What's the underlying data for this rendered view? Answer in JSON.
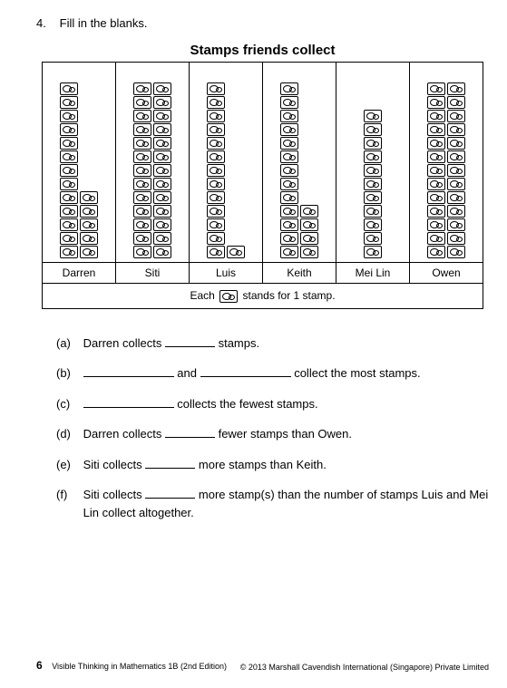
{
  "question_number": "4.",
  "instruction": "Fill in the blanks.",
  "chart": {
    "title": "Stamps friends collect",
    "legend_prefix": "Each",
    "legend_suffix": "stands for 1 stamp.",
    "stamps_per_full_stack": 13,
    "columns": [
      {
        "name": "Darren",
        "count": 18,
        "stacks": [
          13,
          5
        ]
      },
      {
        "name": "Siti",
        "count": 26,
        "stacks": [
          13,
          13
        ]
      },
      {
        "name": "Luis",
        "count": 14,
        "stacks": [
          13,
          1
        ]
      },
      {
        "name": "Keith",
        "count": 17,
        "stacks": [
          13,
          4
        ]
      },
      {
        "name": "Mei Lin",
        "count": 11,
        "stacks": [
          11
        ]
      },
      {
        "name": "Owen",
        "count": 26,
        "stacks": [
          13,
          13
        ]
      }
    ]
  },
  "items": {
    "a": {
      "label": "(a)",
      "seg1": "Darren collects",
      "seg2": "stamps."
    },
    "b": {
      "label": "(b)",
      "seg1": "",
      "seg2": "and",
      "seg3": "collect the most stamps."
    },
    "c": {
      "label": "(c)",
      "seg1": "",
      "seg2": "collects the fewest stamps."
    },
    "d": {
      "label": "(d)",
      "seg1": "Darren collects",
      "seg2": "fewer stamps than Owen."
    },
    "e": {
      "label": "(e)",
      "seg1": "Siti collects",
      "seg2": "more stamps than Keith."
    },
    "f": {
      "label": "(f)",
      "seg1": "Siti collects",
      "seg2": "more stamp(s) than the number of stamps Luis and Mei Lin collect altogether."
    }
  },
  "footer": {
    "page": "6",
    "book": "Visible Thinking in Mathematics 1B (2nd Edition)",
    "copyright": "© 2013 Marshall Cavendish International (Singapore) Private Limited"
  }
}
